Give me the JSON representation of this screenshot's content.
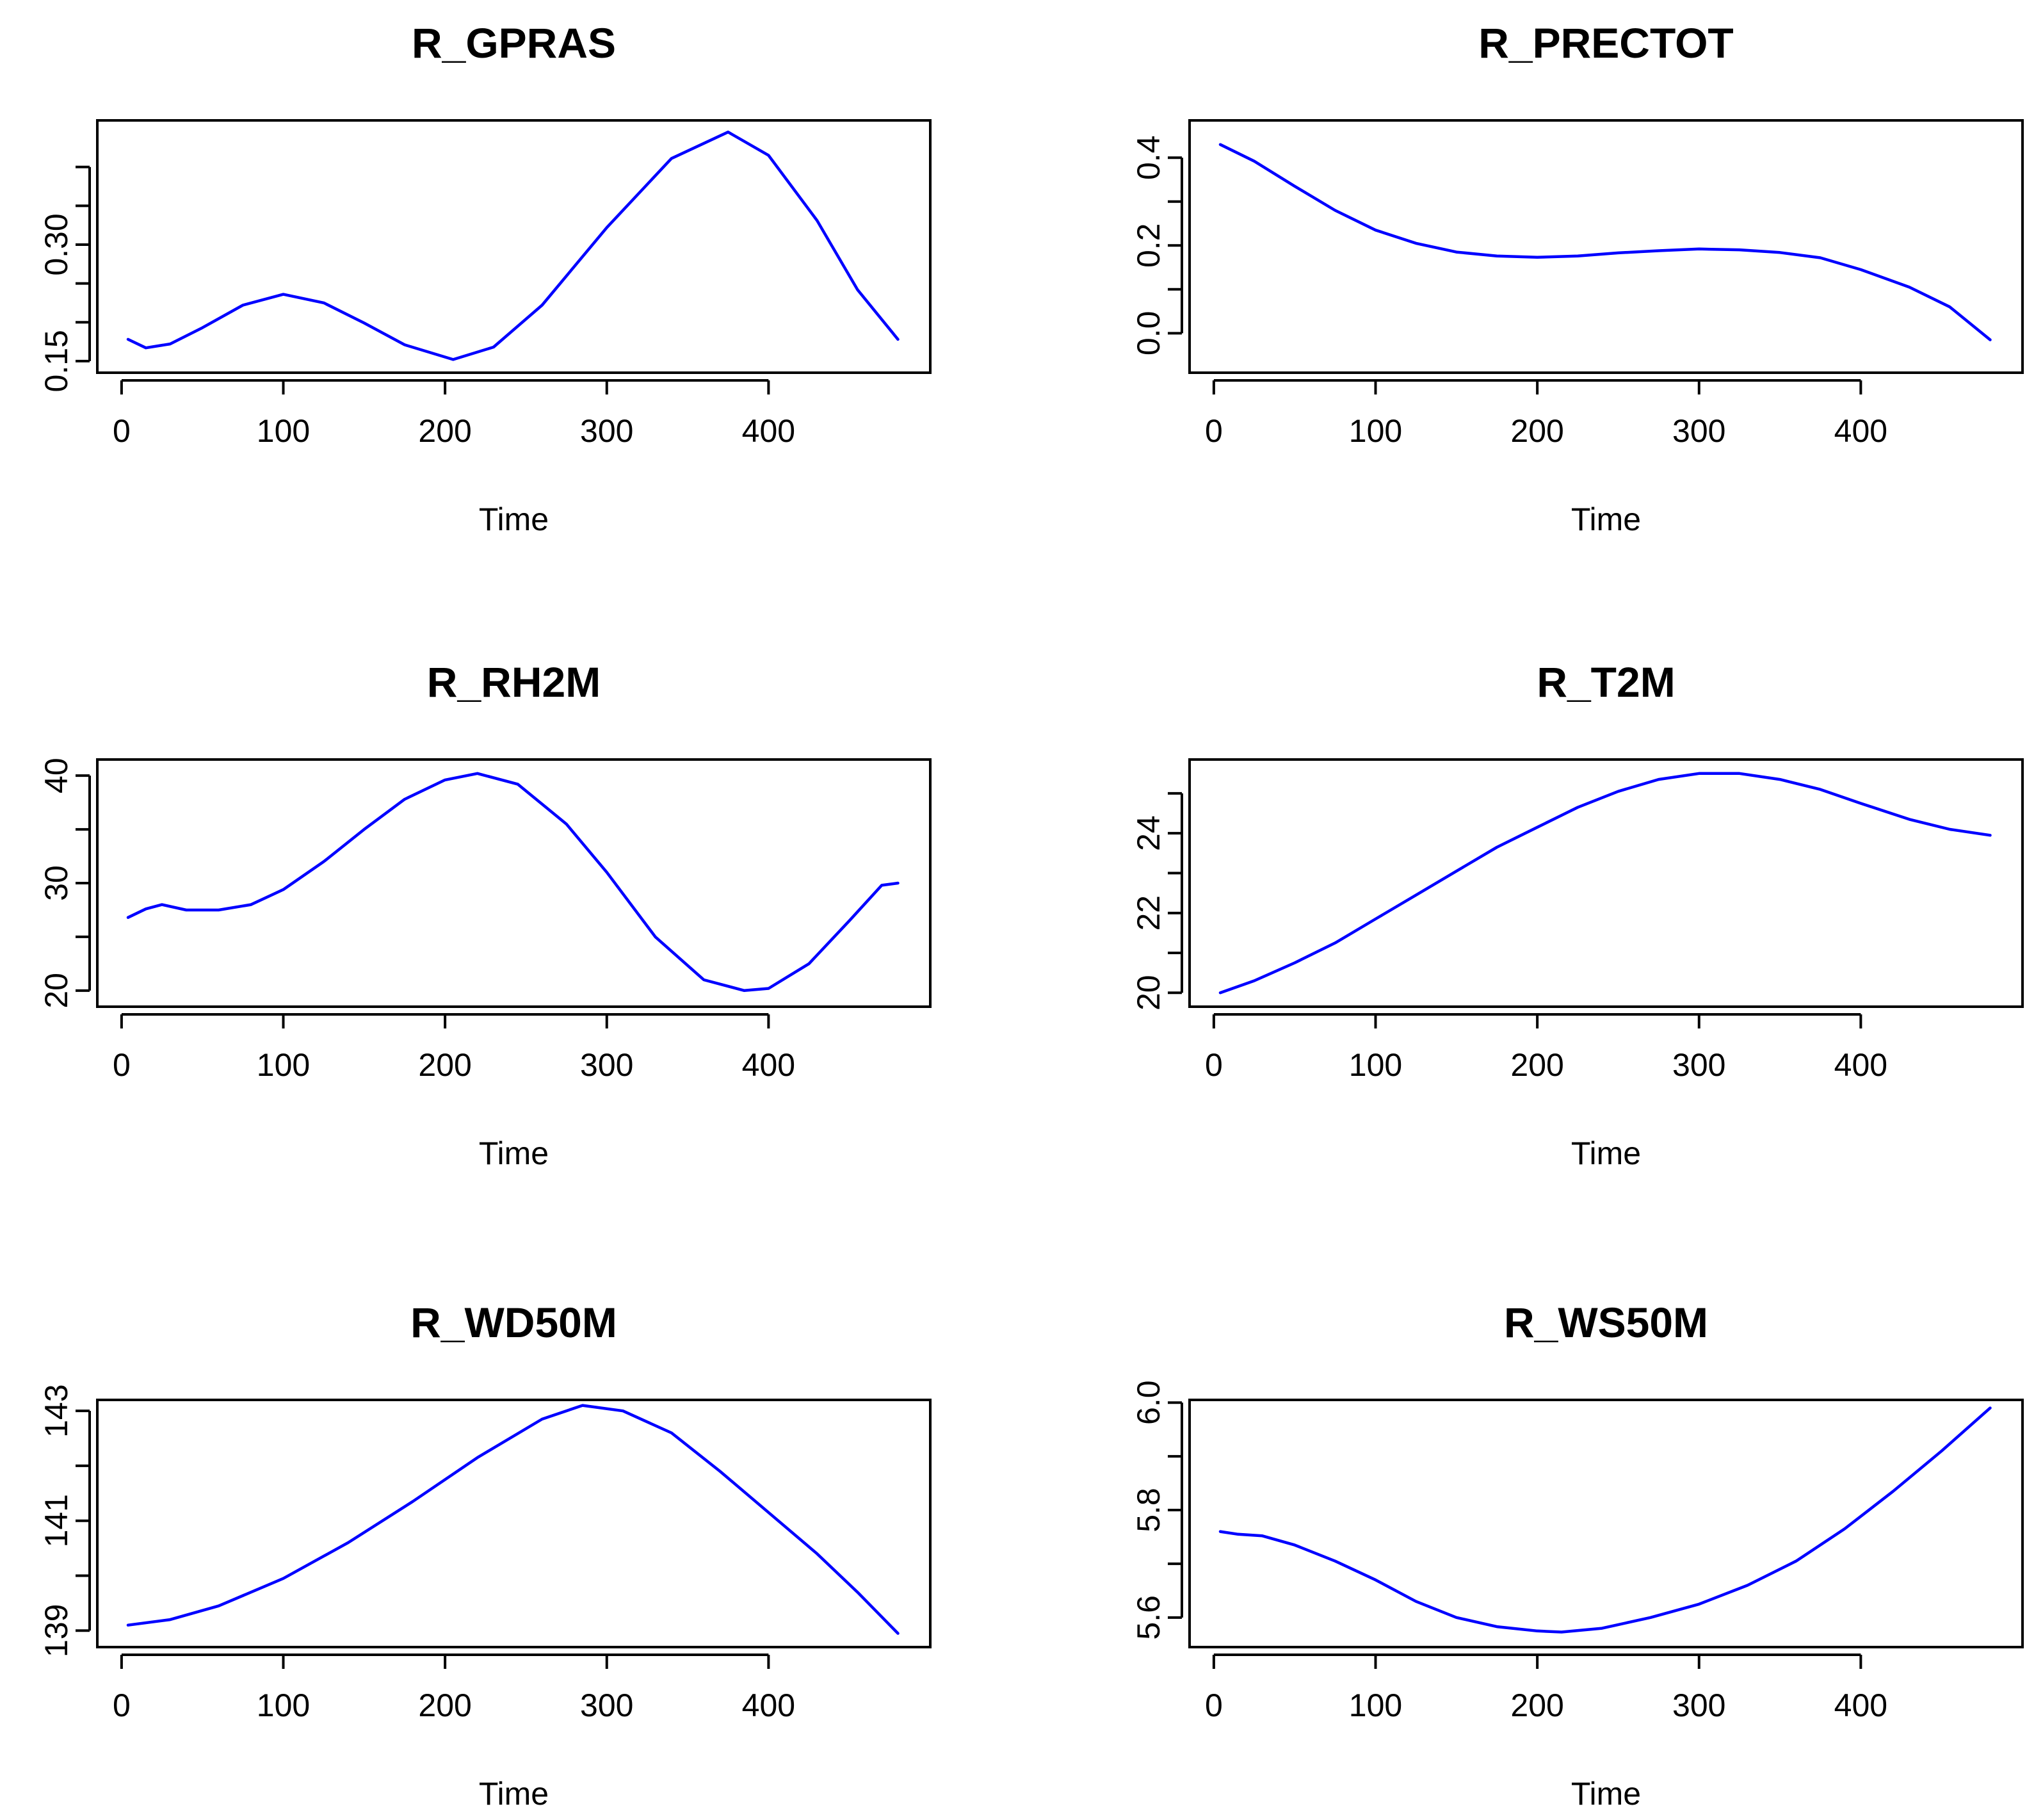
{
  "chart_data": [
    {
      "type": "line",
      "title": "R_GPRAS",
      "xlabel": "Time",
      "ylabel": "",
      "xlim": [
        -15,
        500
      ],
      "ylim": [
        0.135,
        0.46
      ],
      "xticks": [
        0,
        100,
        200,
        300,
        400
      ],
      "xtick_labels": [
        "0",
        "100",
        "200",
        "300",
        "400"
      ],
      "yticks": [
        0.15,
        0.2,
        0.25,
        0.3,
        0.35,
        0.4
      ],
      "ytick_labels": [
        "0.15",
        "",
        "",
        "0.30",
        "",
        ""
      ],
      "series": [
        {
          "name": "R_GPRAS",
          "color": "#0000ff",
          "x": [
            4,
            15,
            30,
            50,
            75,
            100,
            125,
            150,
            175,
            205,
            230,
            260,
            300,
            340,
            375,
            400,
            430,
            455,
            480
          ],
          "y": [
            0.178,
            0.167,
            0.172,
            0.193,
            0.222,
            0.236,
            0.225,
            0.199,
            0.171,
            0.152,
            0.168,
            0.222,
            0.322,
            0.411,
            0.445,
            0.415,
            0.331,
            0.242,
            0.178
          ]
        }
      ]
    },
    {
      "type": "line",
      "title": "R_PRECTOT",
      "xlabel": "Time",
      "ylabel": "",
      "xlim": [
        -15,
        500
      ],
      "ylim": [
        -0.09,
        0.485
      ],
      "xticks": [
        0,
        100,
        200,
        300,
        400
      ],
      "xtick_labels": [
        "0",
        "100",
        "200",
        "300",
        "400"
      ],
      "yticks": [
        0.0,
        0.1,
        0.2,
        0.3,
        0.4
      ],
      "ytick_labels": [
        "0.0",
        "",
        "0.2",
        "",
        "0.4"
      ],
      "series": [
        {
          "name": "R_PRECTOT",
          "color": "#0000ff",
          "x": [
            4,
            25,
            50,
            75,
            100,
            125,
            150,
            175,
            200,
            225,
            250,
            275,
            300,
            325,
            350,
            375,
            400,
            430,
            455,
            480
          ],
          "y": [
            0.43,
            0.392,
            0.335,
            0.28,
            0.235,
            0.205,
            0.185,
            0.176,
            0.173,
            0.176,
            0.183,
            0.188,
            0.192,
            0.19,
            0.184,
            0.172,
            0.145,
            0.105,
            0.06,
            -0.015
          ]
        }
      ]
    },
    {
      "type": "line",
      "title": "R_RH2M",
      "xlabel": "Time",
      "ylabel": "",
      "xlim": [
        -15,
        500
      ],
      "ylim": [
        18.5,
        41.5
      ],
      "xticks": [
        0,
        100,
        200,
        300,
        400
      ],
      "xtick_labels": [
        "0",
        "100",
        "200",
        "300",
        "400"
      ],
      "yticks": [
        20,
        25,
        30,
        35,
        40
      ],
      "ytick_labels": [
        "20",
        "",
        "30",
        "",
        "40"
      ],
      "series": [
        {
          "name": "R_RH2M",
          "color": "#0000ff",
          "x": [
            4,
            15,
            25,
            40,
            60,
            80,
            100,
            125,
            150,
            175,
            200,
            220,
            245,
            275,
            300,
            330,
            360,
            385,
            400,
            425,
            450,
            470,
            480
          ],
          "y": [
            26.8,
            27.6,
            28.0,
            27.5,
            27.5,
            28.0,
            29.4,
            32.0,
            35.0,
            37.8,
            39.6,
            40.2,
            39.2,
            35.5,
            31.0,
            25.0,
            21.0,
            20.0,
            20.2,
            22.5,
            26.5,
            29.8,
            30.0
          ]
        }
      ]
    },
    {
      "type": "line",
      "title": "R_T2M",
      "xlabel": "Time",
      "ylabel": "",
      "xlim": [
        -15,
        500
      ],
      "ylim": [
        19.65,
        25.85
      ],
      "xticks": [
        0,
        100,
        200,
        300,
        400
      ],
      "xtick_labels": [
        "0",
        "100",
        "200",
        "300",
        "400"
      ],
      "yticks": [
        20,
        21,
        22,
        23,
        24,
        25
      ],
      "ytick_labels": [
        "20",
        "",
        "22",
        "",
        "24",
        ""
      ],
      "series": [
        {
          "name": "R_T2M",
          "color": "#0000ff",
          "x": [
            4,
            25,
            50,
            75,
            100,
            125,
            150,
            175,
            200,
            225,
            250,
            275,
            300,
            325,
            350,
            375,
            400,
            430,
            455,
            480
          ],
          "y": [
            20.0,
            20.3,
            20.75,
            21.25,
            21.85,
            22.45,
            23.05,
            23.65,
            24.15,
            24.65,
            25.05,
            25.35,
            25.5,
            25.5,
            25.35,
            25.1,
            24.75,
            24.35,
            24.1,
            23.95
          ]
        }
      ]
    },
    {
      "type": "line",
      "title": "R_WD50M",
      "xlabel": "Time",
      "ylabel": "",
      "xlim": [
        -15,
        500
      ],
      "ylim": [
        138.7,
        143.2
      ],
      "xticks": [
        0,
        100,
        200,
        300,
        400
      ],
      "xtick_labels": [
        "0",
        "100",
        "200",
        "300",
        "400"
      ],
      "yticks": [
        139,
        140,
        141,
        142,
        143
      ],
      "ytick_labels": [
        "139",
        "",
        "141",
        "",
        "143"
      ],
      "series": [
        {
          "name": "R_WD50M",
          "color": "#0000ff",
          "x": [
            4,
            30,
            60,
            100,
            140,
            180,
            220,
            260,
            285,
            310,
            340,
            370,
            400,
            430,
            455,
            480
          ],
          "y": [
            139.1,
            139.2,
            139.45,
            139.95,
            140.6,
            141.35,
            142.15,
            142.85,
            143.1,
            143.0,
            142.6,
            141.9,
            141.15,
            140.4,
            139.7,
            138.95
          ]
        }
      ]
    },
    {
      "type": "line",
      "title": "R_WS50M",
      "xlabel": "Time",
      "ylabel": "",
      "xlim": [
        -15,
        500
      ],
      "ylim": [
        5.545,
        6.005
      ],
      "xticks": [
        0,
        100,
        200,
        300,
        400
      ],
      "xtick_labels": [
        "0",
        "100",
        "200",
        "300",
        "400"
      ],
      "yticks": [
        5.6,
        5.7,
        5.8,
        5.9,
        6.0
      ],
      "ytick_labels": [
        "5.6",
        "",
        "5.8",
        "",
        "6.0"
      ],
      "series": [
        {
          "name": "R_WS50M",
          "color": "#0000ff",
          "x": [
            4,
            15,
            30,
            50,
            75,
            100,
            125,
            150,
            175,
            200,
            215,
            240,
            270,
            300,
            330,
            360,
            390,
            420,
            450,
            480
          ],
          "y": [
            5.76,
            5.755,
            5.752,
            5.735,
            5.705,
            5.67,
            5.63,
            5.6,
            5.583,
            5.575,
            5.573,
            5.58,
            5.6,
            5.625,
            5.66,
            5.705,
            5.765,
            5.835,
            5.91,
            5.99
          ]
        }
      ]
    }
  ]
}
